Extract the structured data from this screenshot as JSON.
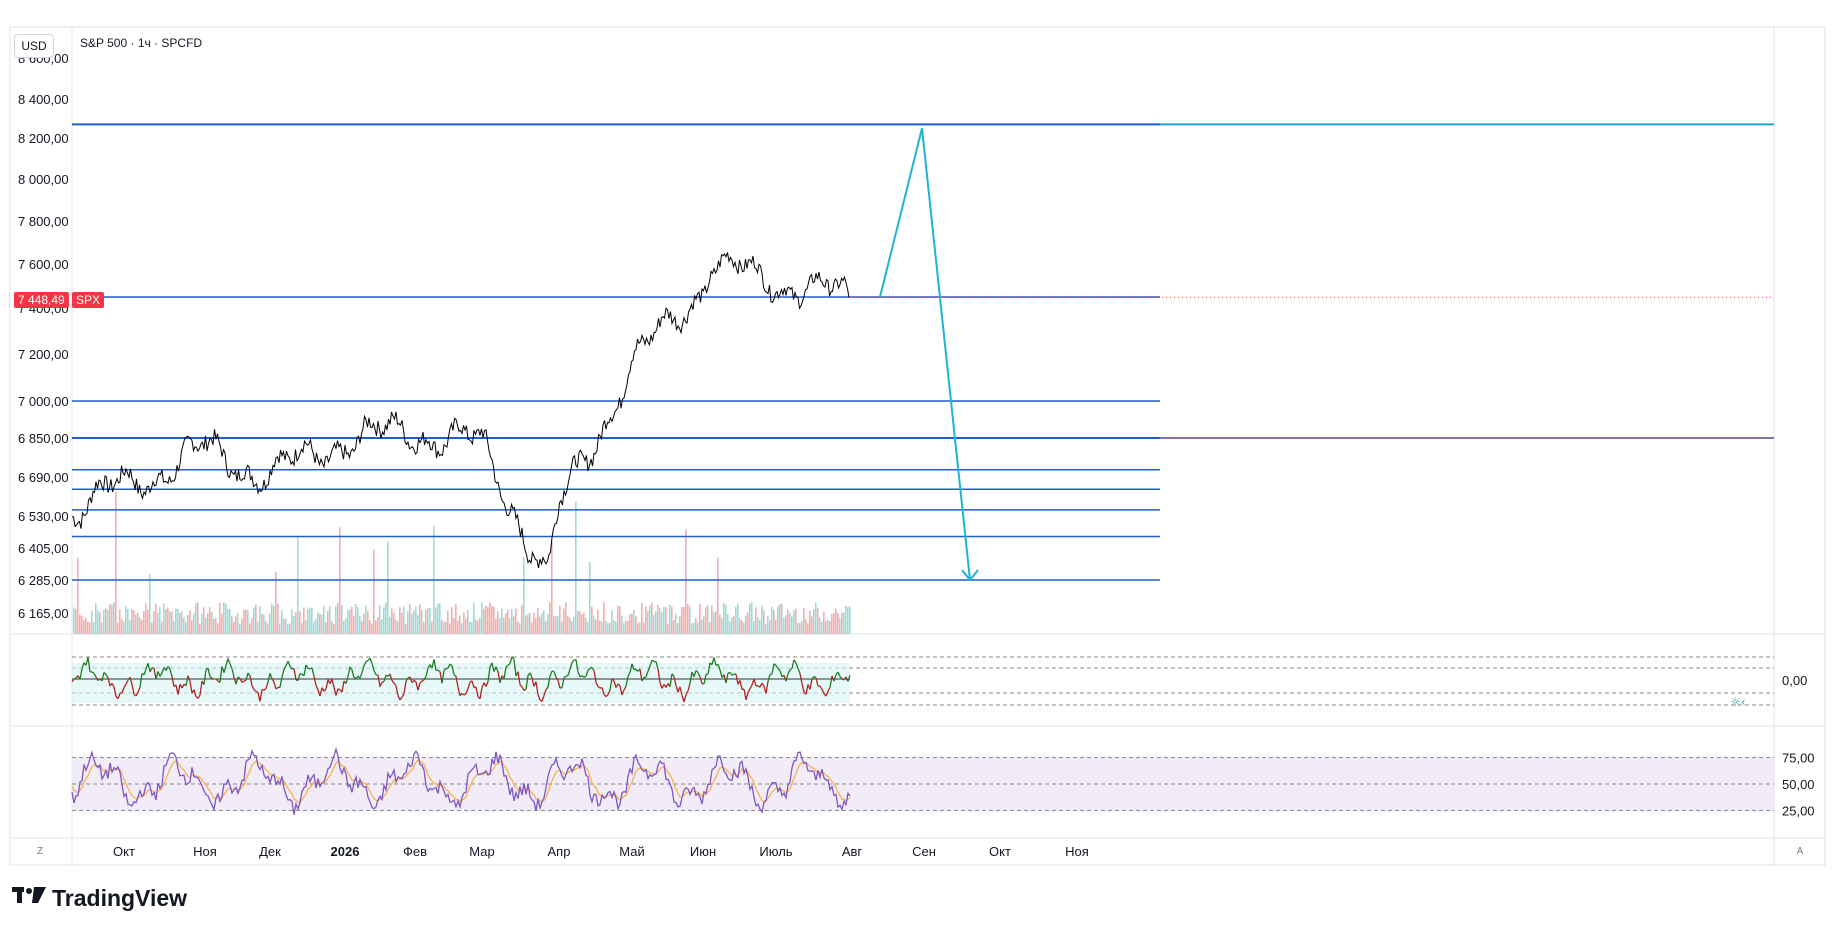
{
  "header": {
    "currency_button": "USD",
    "symbol_title": "S&P 500 · 1ч · SPCFD"
  },
  "price_badge": {
    "value": "7 448,49",
    "symbol": "SPX"
  },
  "footer": {
    "logo_text": "TradingView",
    "left_button": "Z",
    "right_button": "A"
  },
  "colors": {
    "level_line": "#1e5fd0",
    "projection": "#1fb4d1",
    "extension_cyan": "#1fa3d6",
    "extension_purple": "#5b3f8c",
    "price_line": "#000000",
    "badge": "#f23645",
    "volume_up": "#8fd3ce",
    "volume_down": "#f0a1a1",
    "rsi": "#7e57c2",
    "rsi_ma": "#f7b24d",
    "osc_up": "#1b7d20",
    "osc_down": "#b22222"
  },
  "chart_data": [
    {
      "type": "line",
      "title": "S&P 500 · 1ч · SPCFD",
      "y_axis_ticks": [
        "8 600,00",
        "8 400,00",
        "8 200,00",
        "8 000,00",
        "7 800,00",
        "7 600,00",
        "7 400,00",
        "7 200,00",
        "7 000,00",
        "6 850,00",
        "6 690,00",
        "6 530,00",
        "6 405,00",
        "6 285,00",
        "6 165,00"
      ],
      "x_axis_ticks": [
        "Окт",
        "Ноя",
        "Дек",
        "2026",
        "Фев",
        "Мар",
        "Апр",
        "Май",
        "Июн",
        "Июль",
        "Авг",
        "Сен",
        "Окт",
        "Ноя"
      ],
      "ylim": [
        6120,
        8650
      ],
      "current_price": 7448.49,
      "series": [
        {
          "name": "SPX",
          "x": [
            "Окт",
            "Ноя",
            "Дек",
            "2026",
            "Фев",
            "Мар",
            "Апр",
            "Май",
            "Июн",
            "Июль",
            "Авг"
          ],
          "values": [
            6650,
            6800,
            6700,
            6840,
            6880,
            6820,
            6560,
            7150,
            7500,
            7520,
            7450
          ],
          "low_point": 6285,
          "high_point": 7600
        }
      ],
      "horizontal_levels": [
        8270,
        7450,
        7000,
        6850,
        6720,
        6640,
        6555,
        6450,
        6285
      ],
      "projection_path": [
        7450,
        8250,
        6285
      ]
    },
    {
      "type": "line",
      "y_axis_ticks": [
        "0,00"
      ]
    },
    {
      "type": "line",
      "y_axis_ticks": [
        "75,00",
        "50,00",
        "25,00"
      ],
      "ylim": [
        0,
        100
      ],
      "band": [
        25,
        75
      ]
    }
  ]
}
